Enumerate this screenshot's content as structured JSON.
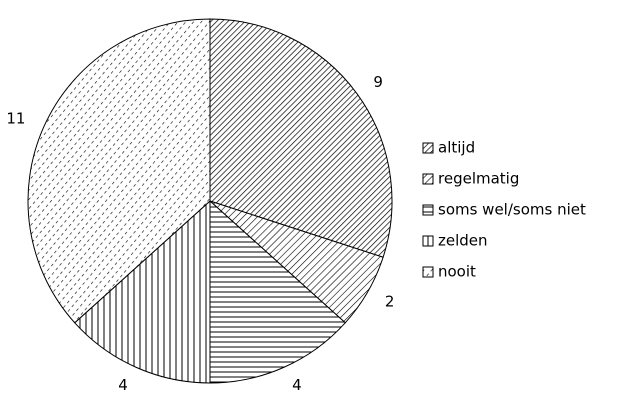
{
  "chart_data": {
    "type": "pie",
    "categories": [
      "altijd",
      "regelmatig",
      "soms wel/soms niet",
      "zelden",
      "nooit"
    ],
    "values": [
      9,
      2,
      4,
      4,
      11
    ],
    "legend": "right"
  }
}
